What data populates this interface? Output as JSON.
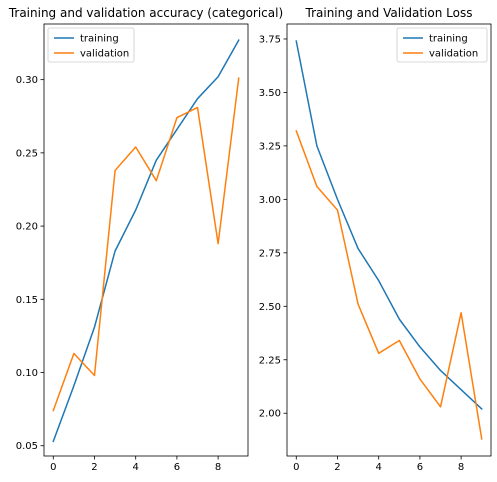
{
  "chart_data": [
    {
      "type": "line",
      "title": "Training and validation accuracy (categorical)",
      "xlabel": "",
      "ylabel": "",
      "x": [
        0,
        1,
        2,
        3,
        4,
        5,
        6,
        7,
        8,
        9
      ],
      "xlim": [
        -0.45,
        9.45
      ],
      "ylim": [
        0.043,
        0.338
      ],
      "xticks": [
        "0",
        "2",
        "4",
        "6",
        "8"
      ],
      "yticks": [
        "0.05",
        "0.10",
        "0.15",
        "0.20",
        "0.25",
        "0.30"
      ],
      "legend_position": "top-left",
      "grid": false,
      "series": [
        {
          "name": "training",
          "color": "#1f77b4",
          "values": [
            0.053,
            0.091,
            0.131,
            0.183,
            0.211,
            0.245,
            0.266,
            0.287,
            0.302,
            0.327
          ]
        },
        {
          "name": "validation",
          "color": "#ff7f0e",
          "values": [
            0.074,
            0.113,
            0.098,
            0.238,
            0.254,
            0.231,
            0.274,
            0.281,
            0.188,
            0.301
          ]
        }
      ]
    },
    {
      "type": "line",
      "title": "Training and Validation Loss",
      "xlabel": "",
      "ylabel": "",
      "x": [
        0,
        1,
        2,
        3,
        4,
        5,
        6,
        7,
        8,
        9
      ],
      "xlim": [
        -0.45,
        9.45
      ],
      "ylim": [
        1.8,
        3.82
      ],
      "xticks": [
        "0",
        "2",
        "4",
        "6",
        "8"
      ],
      "yticks": [
        "2.00",
        "2.25",
        "2.50",
        "2.75",
        "3.00",
        "3.25",
        "3.50",
        "3.75"
      ],
      "legend_position": "top-right",
      "grid": false,
      "series": [
        {
          "name": "training",
          "color": "#1f77b4",
          "values": [
            3.74,
            3.25,
            3.0,
            2.77,
            2.62,
            2.44,
            2.31,
            2.2,
            2.11,
            2.02
          ]
        },
        {
          "name": "validation",
          "color": "#ff7f0e",
          "values": [
            3.32,
            3.06,
            2.95,
            2.51,
            2.28,
            2.34,
            2.16,
            2.03,
            2.47,
            1.88
          ]
        }
      ]
    }
  ]
}
